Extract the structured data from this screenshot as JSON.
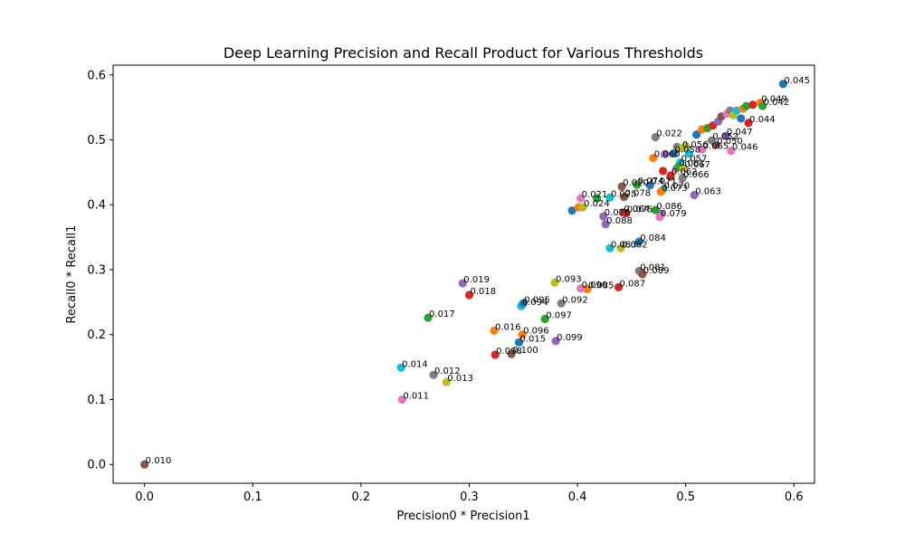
{
  "chart_data": {
    "type": "scatter",
    "title": "Deep Learning Precision and Recall Product for Various Thresholds",
    "xlabel": "Precision0 * Precision1",
    "ylabel": "Recall0 * Recall1",
    "xlim": [
      -0.029,
      0.619
    ],
    "ylim": [
      -0.029,
      0.615
    ],
    "xticks": [
      "0.0",
      "0.1",
      "0.2",
      "0.3",
      "0.4",
      "0.5",
      "0.6"
    ],
    "yticks": [
      "0.0",
      "0.1",
      "0.2",
      "0.3",
      "0.4",
      "0.5",
      "0.6"
    ],
    "grid": false,
    "legend": "none",
    "points": [
      {
        "label": "0.010",
        "x": 0.0,
        "y": 0.0
      },
      {
        "label": "0.011",
        "x": 0.238,
        "y": 0.1
      },
      {
        "label": "0.012",
        "x": 0.267,
        "y": 0.138
      },
      {
        "label": "0.013",
        "x": 0.279,
        "y": 0.127
      },
      {
        "label": "0.014",
        "x": 0.237,
        "y": 0.149
      },
      {
        "label": "0.015",
        "x": 0.346,
        "y": 0.188
      },
      {
        "label": "0.016",
        "x": 0.323,
        "y": 0.206
      },
      {
        "label": "0.017",
        "x": 0.262,
        "y": 0.226
      },
      {
        "label": "0.018",
        "x": 0.3,
        "y": 0.261
      },
      {
        "label": "0.019",
        "x": 0.294,
        "y": 0.279
      },
      {
        "label": "0.020",
        "x": 0.441,
        "y": 0.428
      },
      {
        "label": "0.021",
        "x": 0.403,
        "y": 0.41
      },
      {
        "label": "0.022",
        "x": 0.472,
        "y": 0.504
      },
      {
        "label": "0.024",
        "x": 0.405,
        "y": 0.396
      },
      {
        "label": "0.025",
        "x": 0.43,
        "y": 0.411
      },
      {
        "label": "0.045",
        "x": 0.59,
        "y": 0.586
      },
      {
        "label": "0.049",
        "x": 0.569,
        "y": 0.557
      },
      {
        "label": "0.042",
        "x": 0.571,
        "y": 0.552
      },
      {
        "label": "0.044",
        "x": 0.558,
        "y": 0.526
      },
      {
        "label": "0.047",
        "x": 0.537,
        "y": 0.506
      },
      {
        "label": "0.050",
        "x": 0.528,
        "y": 0.492
      },
      {
        "label": "0.046",
        "x": 0.542,
        "y": 0.483
      },
      {
        "label": "0.053",
        "x": 0.524,
        "y": 0.499
      },
      {
        "label": "0.056",
        "x": 0.496,
        "y": 0.487
      },
      {
        "label": "0.057",
        "x": 0.495,
        "y": 0.465
      },
      {
        "label": "0.058",
        "x": 0.489,
        "y": 0.479
      },
      {
        "label": "0.060",
        "x": 0.47,
        "y": 0.472
      },
      {
        "label": "0.061",
        "x": 0.493,
        "y": 0.458
      },
      {
        "label": "0.062",
        "x": 0.486,
        "y": 0.445
      },
      {
        "label": "0.063",
        "x": 0.508,
        "y": 0.415
      },
      {
        "label": "0.064",
        "x": 0.442,
        "y": 0.388
      },
      {
        "label": "0.065",
        "x": 0.515,
        "y": 0.485
      },
      {
        "label": "0.066",
        "x": 0.497,
        "y": 0.441
      },
      {
        "label": "0.067",
        "x": 0.498,
        "y": 0.456
      },
      {
        "label": "0.070",
        "x": 0.479,
        "y": 0.423
      },
      {
        "label": "0.071",
        "x": 0.467,
        "y": 0.43
      },
      {
        "label": "0.073",
        "x": 0.477,
        "y": 0.42
      },
      {
        "label": "0.074",
        "x": 0.455,
        "y": 0.431
      },
      {
        "label": "0.075",
        "x": 0.445,
        "y": 0.387
      },
      {
        "label": "0.076",
        "x": 0.424,
        "y": 0.382
      },
      {
        "label": "0.078",
        "x": 0.443,
        "y": 0.412
      },
      {
        "label": "0.079",
        "x": 0.476,
        "y": 0.381
      },
      {
        "label": "0.081",
        "x": 0.457,
        "y": 0.298
      },
      {
        "label": "0.082",
        "x": 0.44,
        "y": 0.333
      },
      {
        "label": "0.083",
        "x": 0.43,
        "y": 0.333
      },
      {
        "label": "0.084",
        "x": 0.457,
        "y": 0.343
      },
      {
        "label": "0.085",
        "x": 0.409,
        "y": 0.27
      },
      {
        "label": "0.086",
        "x": 0.472,
        "y": 0.392
      },
      {
        "label": "0.087",
        "x": 0.438,
        "y": 0.273
      },
      {
        "label": "0.088",
        "x": 0.426,
        "y": 0.37
      },
      {
        "label": "0.089",
        "x": 0.46,
        "y": 0.293
      },
      {
        "label": "0.090",
        "x": 0.403,
        "y": 0.271
      },
      {
        "label": "0.092",
        "x": 0.385,
        "y": 0.248
      },
      {
        "label": "0.093",
        "x": 0.379,
        "y": 0.28
      },
      {
        "label": "0.094",
        "x": 0.348,
        "y": 0.244
      },
      {
        "label": "0.095",
        "x": 0.35,
        "y": 0.248
      },
      {
        "label": "0.096",
        "x": 0.349,
        "y": 0.2
      },
      {
        "label": "0.097",
        "x": 0.37,
        "y": 0.224
      },
      {
        "label": "0.098",
        "x": 0.324,
        "y": 0.169
      },
      {
        "label": "0.099",
        "x": 0.38,
        "y": 0.19
      },
      {
        "label": "0.100",
        "x": 0.339,
        "y": 0.17
      }
    ],
    "extra_points": [
      {
        "x": 0.395,
        "y": 0.391
      },
      {
        "x": 0.401,
        "y": 0.396
      },
      {
        "x": 0.418,
        "y": 0.41
      },
      {
        "x": 0.479,
        "y": 0.452
      },
      {
        "x": 0.481,
        "y": 0.478
      },
      {
        "x": 0.486,
        "y": 0.443
      },
      {
        "x": 0.491,
        "y": 0.455
      },
      {
        "x": 0.492,
        "y": 0.489
      },
      {
        "x": 0.5,
        "y": 0.49
      },
      {
        "x": 0.503,
        "y": 0.479
      },
      {
        "x": 0.51,
        "y": 0.508
      },
      {
        "x": 0.515,
        "y": 0.516
      },
      {
        "x": 0.52,
        "y": 0.518
      },
      {
        "x": 0.525,
        "y": 0.522
      },
      {
        "x": 0.53,
        "y": 0.528
      },
      {
        "x": 0.533,
        "y": 0.536
      },
      {
        "x": 0.538,
        "y": 0.54
      },
      {
        "x": 0.541,
        "y": 0.545
      },
      {
        "x": 0.544,
        "y": 0.538
      },
      {
        "x": 0.547,
        "y": 0.545
      },
      {
        "x": 0.551,
        "y": 0.533
      },
      {
        "x": 0.553,
        "y": 0.548
      },
      {
        "x": 0.556,
        "y": 0.552
      },
      {
        "x": 0.562,
        "y": 0.554
      },
      {
        "x": 0.477,
        "y": 0.386
      }
    ]
  }
}
